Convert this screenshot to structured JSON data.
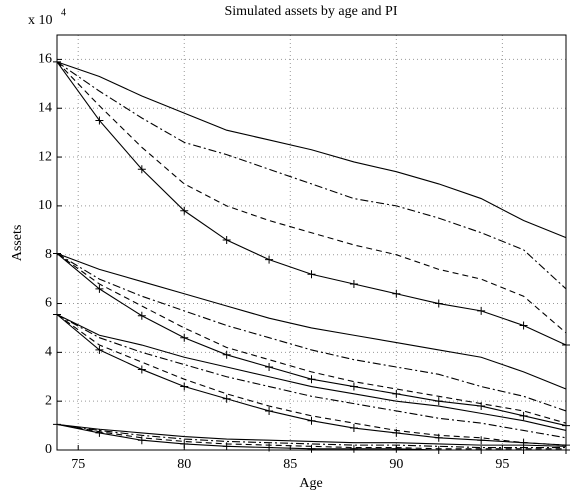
{
  "chart_data": {
    "type": "line",
    "title": "Simulated assets by age and PI",
    "x_label": "Age",
    "y_label": "Assets",
    "y_multiplier": {
      "base": "x 10",
      "exponent": "4"
    },
    "x": [
      74,
      76,
      78,
      80,
      82,
      84,
      86,
      88,
      90,
      92,
      94,
      96,
      98
    ],
    "xlim": [
      74,
      98
    ],
    "xticks": [
      75,
      80,
      85,
      90,
      95
    ],
    "ylim": [
      0,
      17
    ],
    "yticks": [
      0,
      2,
      4,
      6,
      8,
      10,
      12,
      14,
      16
    ],
    "grid": true,
    "series": [
      {
        "color": "#000000",
        "style": "solid",
        "values": [
          15.9,
          15.3,
          14.5,
          13.8,
          13.1,
          12.7,
          12.3,
          11.8,
          11.4,
          10.9,
          10.3,
          9.4,
          8.7
        ]
      },
      {
        "color": "#000000",
        "style": "dashdot",
        "values": [
          15.9,
          14.7,
          13.6,
          12.6,
          12.1,
          11.5,
          10.9,
          10.3,
          10.0,
          9.5,
          8.9,
          8.2,
          6.6
        ]
      },
      {
        "color": "#000000",
        "style": "dashed",
        "values": [
          15.9,
          14.1,
          12.4,
          10.9,
          10.0,
          9.4,
          8.9,
          8.4,
          8.0,
          7.4,
          7.0,
          6.3,
          4.8
        ]
      },
      {
        "color": "#000000",
        "style": "solid",
        "marker": "+",
        "values": [
          15.9,
          13.5,
          11.5,
          9.8,
          8.6,
          7.8,
          7.2,
          6.8,
          6.4,
          6.0,
          5.7,
          5.1,
          4.3
        ]
      },
      {
        "color": "#000000",
        "style": "solid",
        "values": [
          8.05,
          7.4,
          6.9,
          6.4,
          5.9,
          5.4,
          5.0,
          4.7,
          4.4,
          4.1,
          3.8,
          3.2,
          2.5
        ]
      },
      {
        "color": "#000000",
        "style": "dashdot",
        "values": [
          8.05,
          7.0,
          6.3,
          5.7,
          5.1,
          4.6,
          4.1,
          3.7,
          3.4,
          3.1,
          2.6,
          2.2,
          1.6
        ]
      },
      {
        "color": "#000000",
        "style": "dashed",
        "values": [
          8.05,
          6.8,
          5.9,
          5.0,
          4.2,
          3.7,
          3.2,
          2.8,
          2.5,
          2.2,
          1.9,
          1.6,
          1.1
        ]
      },
      {
        "color": "#000000",
        "style": "solid",
        "marker": "+",
        "values": [
          8.05,
          6.6,
          5.5,
          4.6,
          3.9,
          3.4,
          2.9,
          2.6,
          2.3,
          2.0,
          1.8,
          1.4,
          1.0
        ]
      },
      {
        "color": "#000000",
        "style": "solid",
        "values": [
          5.55,
          4.7,
          4.3,
          3.8,
          3.4,
          3.0,
          2.6,
          2.3,
          2.0,
          1.8,
          1.5,
          1.2,
          0.8
        ]
      },
      {
        "color": "#000000",
        "style": "dashdot",
        "values": [
          5.55,
          4.6,
          4.0,
          3.5,
          3.0,
          2.6,
          2.2,
          1.9,
          1.6,
          1.3,
          1.1,
          0.8,
          0.5
        ]
      },
      {
        "color": "#000000",
        "style": "dashed",
        "values": [
          5.55,
          4.3,
          3.6,
          2.9,
          2.3,
          1.8,
          1.4,
          1.1,
          0.8,
          0.6,
          0.5,
          0.3,
          0.2
        ]
      },
      {
        "color": "#000000",
        "style": "solid",
        "marker": "+",
        "values": [
          5.55,
          4.1,
          3.3,
          2.6,
          2.1,
          1.6,
          1.2,
          0.9,
          0.7,
          0.5,
          0.4,
          0.3,
          0.2
        ]
      },
      {
        "color": "#000000",
        "style": "solid",
        "values": [
          1.05,
          0.85,
          0.7,
          0.55,
          0.45,
          0.4,
          0.35,
          0.3,
          0.3,
          0.25,
          0.2,
          0.2,
          0.15
        ]
      },
      {
        "color": "#000000",
        "style": "dashdot",
        "values": [
          1.05,
          0.8,
          0.6,
          0.45,
          0.35,
          0.3,
          0.25,
          0.2,
          0.2,
          0.15,
          0.1,
          0.1,
          0.1
        ]
      },
      {
        "color": "#000000",
        "style": "dashed",
        "values": [
          1.05,
          0.75,
          0.5,
          0.35,
          0.25,
          0.2,
          0.15,
          0.1,
          0.1,
          0.05,
          0.05,
          0.05,
          0.05
        ]
      },
      {
        "color": "#000000",
        "style": "solid",
        "marker": "+",
        "values": [
          1.05,
          0.7,
          0.4,
          0.25,
          0.15,
          0.1,
          0.05,
          0.05,
          0.05,
          0,
          0,
          0,
          0
        ]
      }
    ]
  }
}
